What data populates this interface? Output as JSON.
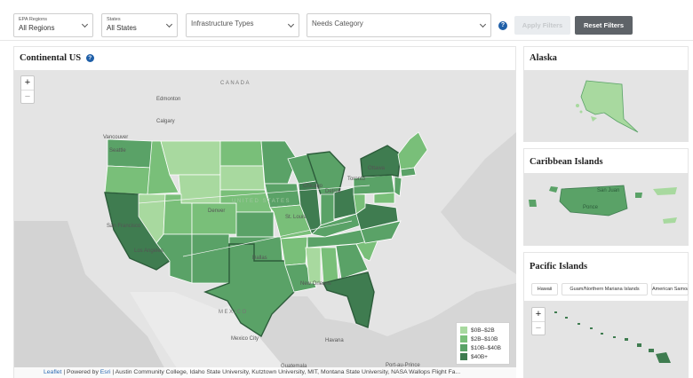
{
  "filters": {
    "epa_regions": {
      "label": "EPA Regions",
      "value": "All Regions"
    },
    "states": {
      "label": "States",
      "value": "All States"
    },
    "infrastructure": {
      "value": "Infrastructure Types"
    },
    "needs": {
      "value": "Needs Category"
    },
    "help": "?",
    "apply_label": "Apply Filters",
    "reset_label": "Reset Filters"
  },
  "continental": {
    "title": "Continental US",
    "help": "?",
    "zoom_in": "+",
    "zoom_out": "−",
    "place_labels": {
      "canada": "CANADA",
      "edmonton": "Edmonton",
      "calgary": "Calgary",
      "vancouver": "Vancouver",
      "seattle": "Seattle",
      "ottawa": "Ottawa",
      "toronto": "Toronto",
      "chicago": "Chicago",
      "detroit": "Detroit",
      "denver": "Denver",
      "st_louis": "St. Louis",
      "san_francisco": "San Francisco",
      "los_angeles": "Los Angeles",
      "dallas": "Dallas",
      "new_orleans": "New Orleans",
      "mexico": "MEXICO",
      "mexico_city": "Mexico City",
      "havana": "Havana",
      "port_au_prince": "Port-au-Prince",
      "guatemala": "Guatemala",
      "united_states": "UNITED STATES"
    },
    "legend": [
      {
        "label": "$0B–$2B",
        "color": "#a8d99f"
      },
      {
        "label": "$2B–$10B",
        "color": "#79bf79"
      },
      {
        "label": "$10B–$40B",
        "color": "#5aa267"
      },
      {
        "label": "$40B+",
        "color": "#3f7c50"
      }
    ],
    "attribution": {
      "leaflet": "Leaflet",
      "powered": "| Powered by",
      "esri": "Esri",
      "credits": "| Austin Community College, Idaho State University, Kutztown University, MIT, Montana State University, NASA Wallops Flight Fa..."
    }
  },
  "alaska": {
    "title": "Alaska"
  },
  "caribbean": {
    "title": "Caribbean Islands",
    "labels": {
      "san_juan": "San Juan",
      "ponce": "Ponce"
    }
  },
  "pacific": {
    "title": "Pacific Islands",
    "tabs": [
      "Hawaii",
      "Guam/Northern Mariana Islands",
      "American Samoa"
    ],
    "zoom_in": "+",
    "zoom_out": "−"
  },
  "colors": {
    "tier1": "#a8d99f",
    "tier2": "#79bf79",
    "tier3": "#5aa267",
    "tier4": "#3f7c50",
    "accent": "#1f5fa8",
    "reset_button": "#5e6368",
    "map_background": "#e4e4e4"
  }
}
